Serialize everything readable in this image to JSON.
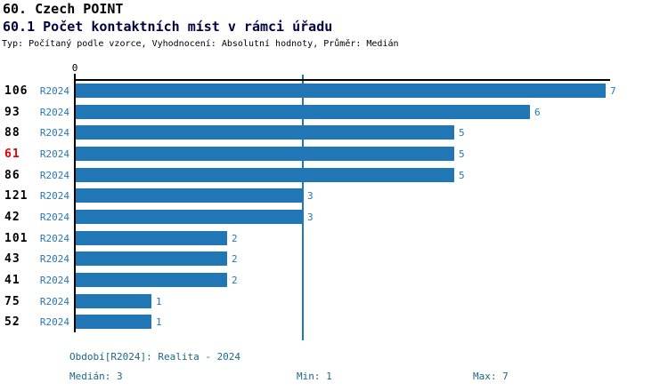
{
  "header": {
    "title": "60. Czech POINT",
    "subtitle": "60.1 Počet kontaktních míst v rámci úřadu",
    "meta": "Typ: Počítaný podle vzorce, Vyhodnocení: Absolutní hodnoty, Průměr: Medián"
  },
  "chart_data": {
    "type": "bar",
    "orientation": "horizontal",
    "title": "60.1 Počet kontaktních míst v rámci úřadu",
    "x_axis": {
      "origin_label": "0",
      "min": 0,
      "max_shown": 7,
      "gridlines": false
    },
    "categories": [
      "106",
      "93",
      "88",
      "61",
      "86",
      "121",
      "42",
      "101",
      "43",
      "41",
      "75",
      "52"
    ],
    "period_label": "R2024",
    "values": [
      7,
      6,
      5,
      5,
      5,
      3,
      3,
      2,
      2,
      2,
      1,
      1
    ],
    "rows": [
      {
        "id": "106",
        "period": "R2024",
        "value": 7,
        "highlight": false
      },
      {
        "id": "93",
        "period": "R2024",
        "value": 6,
        "highlight": false
      },
      {
        "id": "88",
        "period": "R2024",
        "value": 5,
        "highlight": false
      },
      {
        "id": "61",
        "period": "R2024",
        "value": 5,
        "highlight": true
      },
      {
        "id": "86",
        "period": "R2024",
        "value": 5,
        "highlight": false
      },
      {
        "id": "121",
        "period": "R2024",
        "value": 3,
        "highlight": false
      },
      {
        "id": "42",
        "period": "R2024",
        "value": 3,
        "highlight": false
      },
      {
        "id": "101",
        "period": "R2024",
        "value": 2,
        "highlight": false
      },
      {
        "id": "43",
        "period": "R2024",
        "value": 2,
        "highlight": false
      },
      {
        "id": "41",
        "period": "R2024",
        "value": 2,
        "highlight": false
      },
      {
        "id": "75",
        "period": "R2024",
        "value": 1,
        "highlight": false
      },
      {
        "id": "52",
        "period": "R2024",
        "value": 1,
        "highlight": false
      }
    ],
    "median_line_value": 3,
    "colors": {
      "bar": "#2176b5",
      "value_label": "#2577b5",
      "period_label": "#2577b5",
      "id_label": "#000000",
      "highlight_id": "#e60000",
      "median_line": "#2176b5",
      "axis": "#000000"
    }
  },
  "footer": {
    "period_line": "Období[R2024]: Realita - 2024",
    "median": "Medián: 3",
    "min": "Min: 1",
    "max": "Max: 7",
    "text_color": "#17698a"
  }
}
